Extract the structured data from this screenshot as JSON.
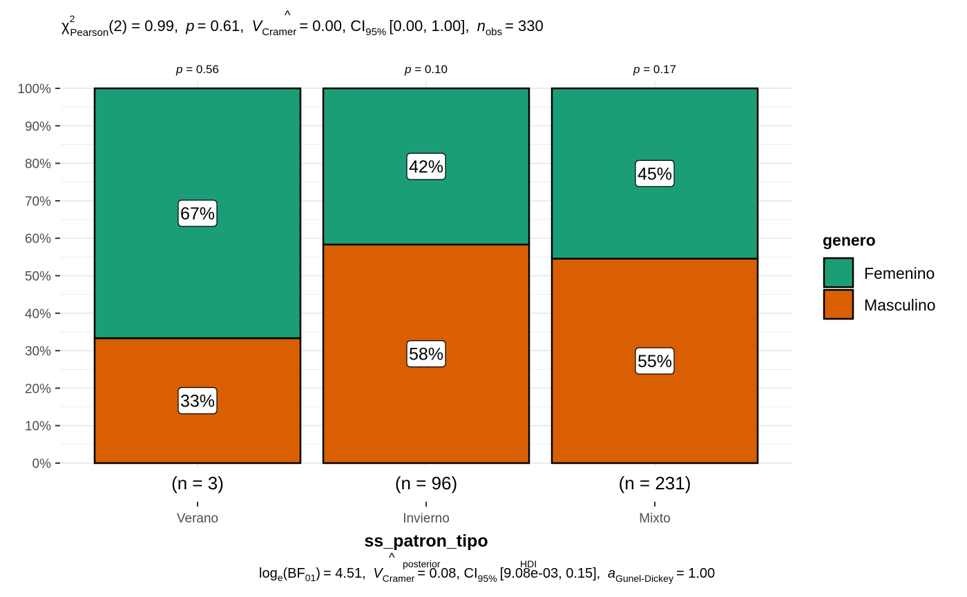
{
  "chart_data": {
    "type": "bar",
    "stacked": true,
    "percent": true,
    "xlabel": "ss_patron_tipo",
    "categories": [
      "Verano",
      "Invierno",
      "Mixto"
    ],
    "counts_labels": [
      "(n = 3)",
      "(n = 96)",
      "(n = 231)"
    ],
    "p_values": [
      "0.56",
      "0.10",
      "0.17"
    ],
    "ylim": [
      0,
      100
    ],
    "y_ticks": [
      "0%",
      "10%",
      "20%",
      "30%",
      "40%",
      "50%",
      "60%",
      "70%",
      "80%",
      "90%",
      "100%"
    ],
    "legend": {
      "title": "genero",
      "position": "right"
    },
    "series": [
      {
        "name": "Masculino",
        "color": "#D95F02",
        "values": [
          33.33,
          58.33,
          54.55
        ],
        "labels": [
          "33%",
          "58%",
          "55%"
        ]
      },
      {
        "name": "Femenino",
        "color": "#1B9E77",
        "values": [
          66.67,
          41.67,
          45.45
        ],
        "labels": [
          "67%",
          "42%",
          "45%"
        ]
      }
    ],
    "grid": true,
    "subtitle_stats": {
      "chi_value": "(2) = 0.99,",
      "p_value": "= 0.61,",
      "cramer_value": "= 0.00, CI",
      "ci_sub": "95%",
      "ci_value": "[0.00, 1.00],",
      "n_value": "= 330"
    },
    "caption_stats": {
      "bf_value": "= 4.51,",
      "cramer_value": "= 0.08, CI",
      "ci_value": "[9.08e-03, 0.15],",
      "a_value": "= 1.00"
    }
  }
}
